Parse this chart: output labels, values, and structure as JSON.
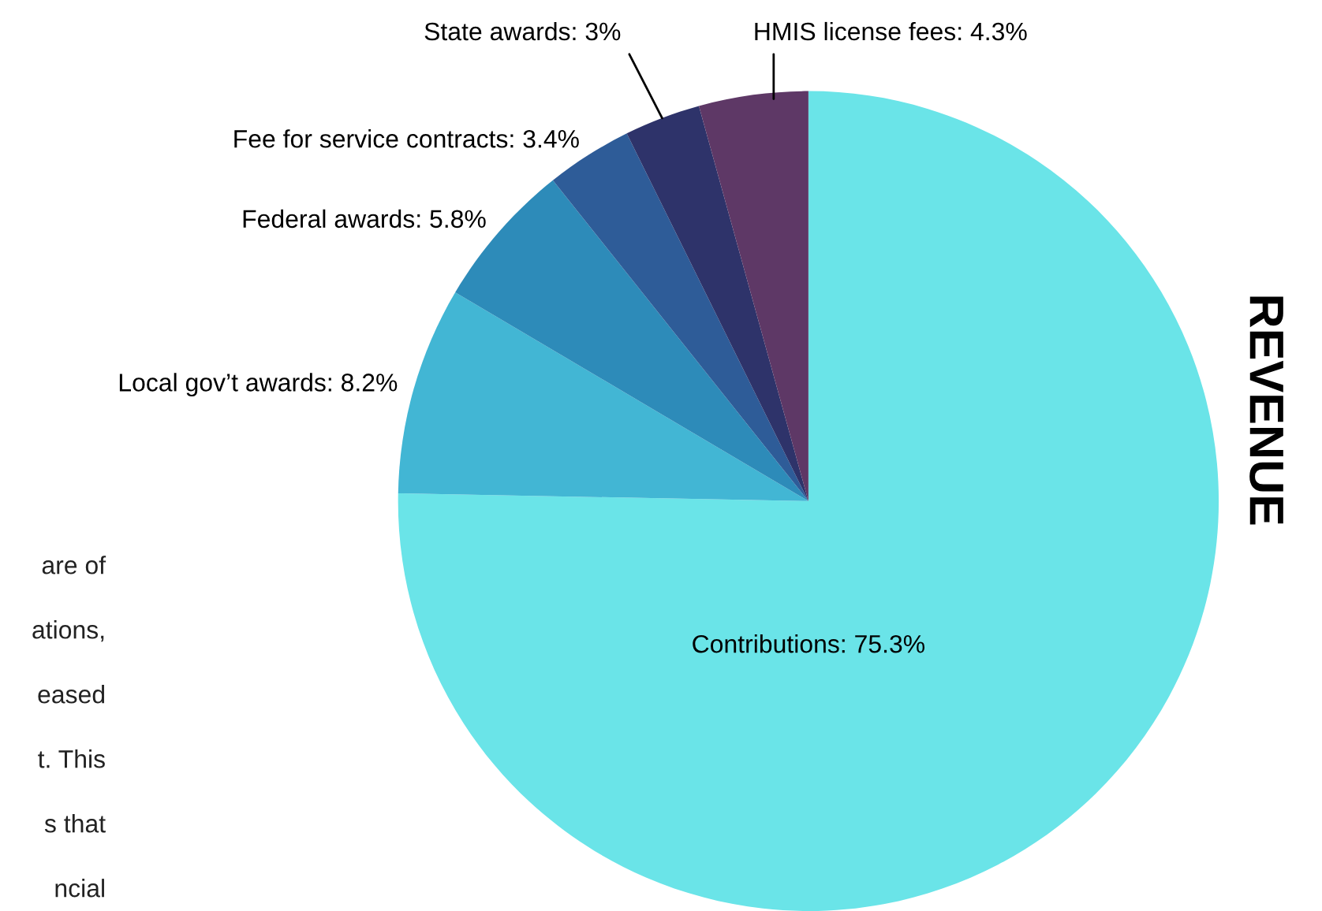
{
  "chart_data": {
    "type": "pie",
    "title": "REVENUE",
    "categories": [
      "Contributions",
      "Local gov’t awards",
      "Federal awards",
      "Fee for service contracts",
      "State awards",
      "HMIS license fees"
    ],
    "values": [
      75.3,
      8.2,
      5.8,
      3.4,
      3,
      4.3
    ],
    "value_labels": [
      "75.3%",
      "8.2%",
      "5.8%",
      "3.4%",
      "3%",
      "4.3%"
    ],
    "colors": [
      "#6ae4e8",
      "#42b6d4",
      "#2d8bb9",
      "#2e5c98",
      "#2e336a",
      "#5e3866"
    ],
    "annotations": [
      "are of",
      "ations,",
      "eased",
      "t. This",
      "s that",
      "ncial"
    ]
  }
}
